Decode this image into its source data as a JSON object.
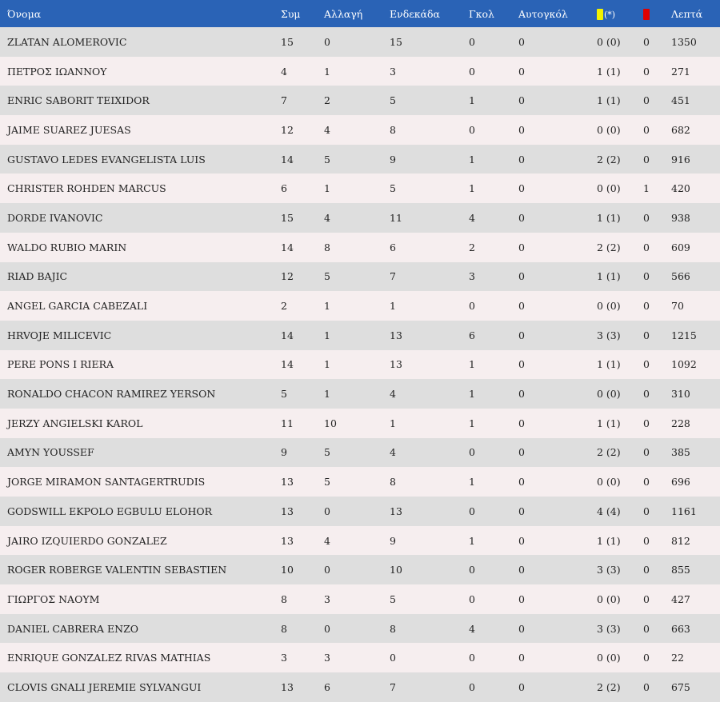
{
  "colors": {
    "header_bg": "#2a63b6",
    "row_even": "#dedede",
    "row_odd": "#f6eeef",
    "yellow_card": "#f2f200",
    "red_card": "#e00000"
  },
  "header": {
    "name": "Όνομα",
    "apps": "Συμ",
    "subs": "Αλλαγή",
    "lineups": "Ενδεκάδα",
    "goals": "Γκολ",
    "own_goals": "Αυτογκόλ",
    "yellow_suffix": "(*)",
    "yellow_icon": "yellow-card-icon",
    "red_icon": "red-card-icon",
    "minutes": "Λεπτά"
  },
  "players": [
    {
      "name": "ZLATAN ALOMEROVIC",
      "apps": "15",
      "subs": "0",
      "lineups": "15",
      "goals": "0",
      "own_goals": "0",
      "yellow": "0 (0)",
      "red": "0",
      "minutes": "1350"
    },
    {
      "name": "ΠΕΤΡΟΣ ΙΩΑΝΝΟΥ",
      "apps": "4",
      "subs": "1",
      "lineups": "3",
      "goals": "0",
      "own_goals": "0",
      "yellow": "1 (1)",
      "red": "0",
      "minutes": "271"
    },
    {
      "name": "ENRIC SABORIT TEIXIDOR",
      "apps": "7",
      "subs": "2",
      "lineups": "5",
      "goals": "1",
      "own_goals": "0",
      "yellow": "1 (1)",
      "red": "0",
      "minutes": "451"
    },
    {
      "name": "JAIME SUAREZ JUESAS",
      "apps": "12",
      "subs": "4",
      "lineups": "8",
      "goals": "0",
      "own_goals": "0",
      "yellow": "0 (0)",
      "red": "0",
      "minutes": "682"
    },
    {
      "name": "GUSTAVO LEDES EVANGELISTA LUIS",
      "apps": "14",
      "subs": "5",
      "lineups": "9",
      "goals": "1",
      "own_goals": "0",
      "yellow": "2 (2)",
      "red": "0",
      "minutes": "916"
    },
    {
      "name": "CHRISTER ROHDEN MARCUS",
      "apps": "6",
      "subs": "1",
      "lineups": "5",
      "goals": "1",
      "own_goals": "0",
      "yellow": "0 (0)",
      "red": "1",
      "minutes": "420"
    },
    {
      "name": "DORDE IVANOVIC",
      "apps": "15",
      "subs": "4",
      "lineups": "11",
      "goals": "4",
      "own_goals": "0",
      "yellow": "1 (1)",
      "red": "0",
      "minutes": "938"
    },
    {
      "name": "WALDO RUBIO MARIN",
      "apps": "14",
      "subs": "8",
      "lineups": "6",
      "goals": "2",
      "own_goals": "0",
      "yellow": "2 (2)",
      "red": "0",
      "minutes": "609"
    },
    {
      "name": "RIAD BAJIC",
      "apps": "12",
      "subs": "5",
      "lineups": "7",
      "goals": "3",
      "own_goals": "0",
      "yellow": "1 (1)",
      "red": "0",
      "minutes": "566"
    },
    {
      "name": "ANGEL GARCIA CABEZALI",
      "apps": "2",
      "subs": "1",
      "lineups": "1",
      "goals": "0",
      "own_goals": "0",
      "yellow": "0 (0)",
      "red": "0",
      "minutes": "70"
    },
    {
      "name": "HRVOJE MILICEVIC",
      "apps": "14",
      "subs": "1",
      "lineups": "13",
      "goals": "6",
      "own_goals": "0",
      "yellow": "3 (3)",
      "red": "0",
      "minutes": "1215"
    },
    {
      "name": "PERE PONS I RIERA",
      "apps": "14",
      "subs": "1",
      "lineups": "13",
      "goals": "1",
      "own_goals": "0",
      "yellow": "1 (1)",
      "red": "0",
      "minutes": "1092"
    },
    {
      "name": "RONALDO CHACON RAMIREZ YERSON",
      "apps": "5",
      "subs": "1",
      "lineups": "4",
      "goals": "1",
      "own_goals": "0",
      "yellow": "0 (0)",
      "red": "0",
      "minutes": "310"
    },
    {
      "name": "JERZY ANGIELSKI KAROL",
      "apps": "11",
      "subs": "10",
      "lineups": "1",
      "goals": "1",
      "own_goals": "0",
      "yellow": "1 (1)",
      "red": "0",
      "minutes": "228"
    },
    {
      "name": "AMYN YOUSSEF",
      "apps": "9",
      "subs": "5",
      "lineups": "4",
      "goals": "0",
      "own_goals": "0",
      "yellow": "2 (2)",
      "red": "0",
      "minutes": "385"
    },
    {
      "name": "JORGE MIRAMON SANTAGERTRUDIS",
      "apps": "13",
      "subs": "5",
      "lineups": "8",
      "goals": "1",
      "own_goals": "0",
      "yellow": "0 (0)",
      "red": "0",
      "minutes": "696"
    },
    {
      "name": "GODSWILL EKPOLO EGBULU ELOHOR",
      "apps": "13",
      "subs": "0",
      "lineups": "13",
      "goals": "0",
      "own_goals": "0",
      "yellow": "4 (4)",
      "red": "0",
      "minutes": "1161"
    },
    {
      "name": "JAIRO IZQUIERDO GONZALEZ",
      "apps": "13",
      "subs": "4",
      "lineups": "9",
      "goals": "1",
      "own_goals": "0",
      "yellow": "1 (1)",
      "red": "0",
      "minutes": "812"
    },
    {
      "name": "ROGER ROBERGE VALENTIN SEBASTIEN",
      "apps": "10",
      "subs": "0",
      "lineups": "10",
      "goals": "0",
      "own_goals": "0",
      "yellow": "3 (3)",
      "red": "0",
      "minutes": "855"
    },
    {
      "name": "ΓΙΩΡΓΟΣ ΝΑΟΥΜ",
      "apps": "8",
      "subs": "3",
      "lineups": "5",
      "goals": "0",
      "own_goals": "0",
      "yellow": "0 (0)",
      "red": "0",
      "minutes": "427"
    },
    {
      "name": "DANIEL CABRERA ENZO",
      "apps": "8",
      "subs": "0",
      "lineups": "8",
      "goals": "4",
      "own_goals": "0",
      "yellow": "3 (3)",
      "red": "0",
      "minutes": "663"
    },
    {
      "name": "ENRIQUE GONZALEZ RIVAS MATHIAS",
      "apps": "3",
      "subs": "3",
      "lineups": "0",
      "goals": "0",
      "own_goals": "0",
      "yellow": "0 (0)",
      "red": "0",
      "minutes": "22"
    },
    {
      "name": "CLOVIS GNALI JEREMIE SYLVANGUI",
      "apps": "13",
      "subs": "6",
      "lineups": "7",
      "goals": "0",
      "own_goals": "0",
      "yellow": "2 (2)",
      "red": "0",
      "minutes": "675"
    }
  ]
}
